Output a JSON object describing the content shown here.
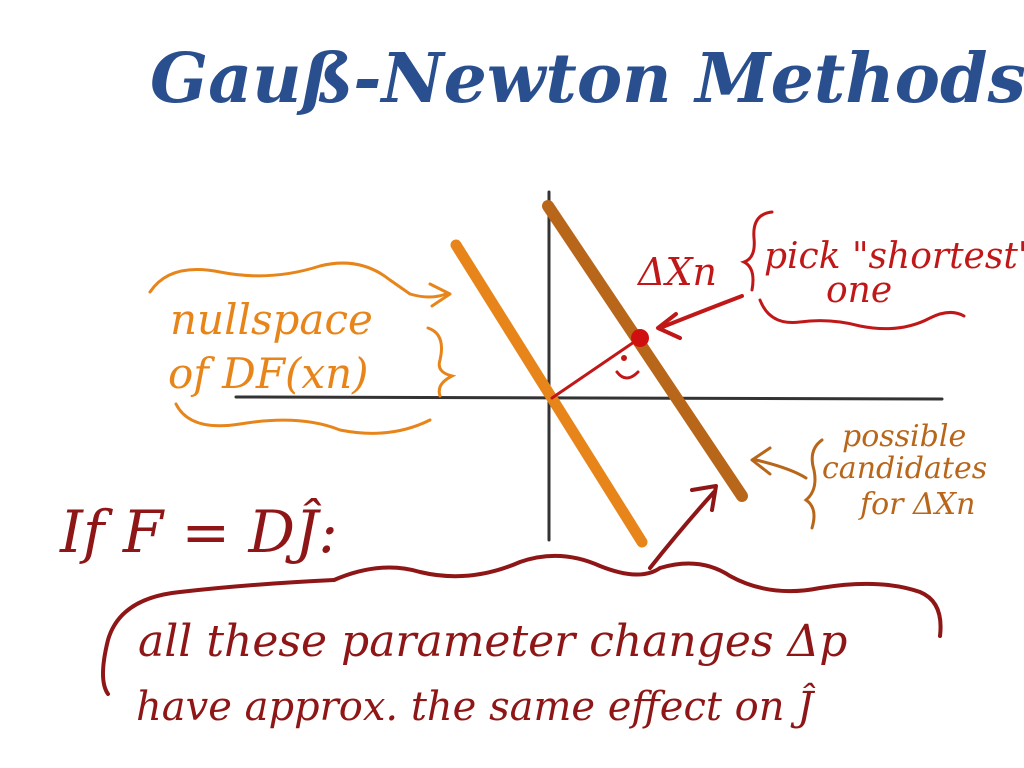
{
  "title": "Gauß-Newton Methods",
  "labels": {
    "nullspace_line1": "nullspace",
    "nullspace_line2": "of DF(xn)",
    "delta_xn": "ΔXn",
    "pick_shortest_line1": "pick \"shortest\"",
    "pick_shortest_line2": "one",
    "possible_line1": "possible",
    "possible_line2": "candidates",
    "possible_line3": "for ΔXn",
    "condition": "If F = DĴ:",
    "bottom_line1": "all these parameter changes Δp",
    "bottom_line2": "have approx. the same effect on Ĵ"
  },
  "colors": {
    "title": "#2a4f8f",
    "nullspace_line": "#e8851a",
    "candidate_line": "#b8661a",
    "annotation_red": "#c01818",
    "annotation_dark_red": "#8e1616",
    "axes": "#333333"
  }
}
